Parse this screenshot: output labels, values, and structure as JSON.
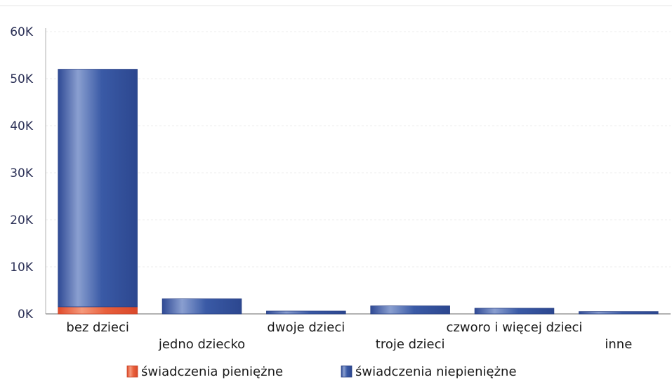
{
  "chart_data": {
    "type": "bar",
    "stacked": true,
    "categories": [
      "bez dzieci",
      "jedno dziecko",
      "dwoje dzieci",
      "troje dzieci",
      "czworo i więcej dzieci",
      "inne"
    ],
    "series": [
      {
        "name": "świadczenia pieniężne",
        "color": "#e8603c",
        "values": [
          1500,
          0,
          0,
          0,
          0,
          0
        ]
      },
      {
        "name": "świadczenia niepieniężne",
        "color": "#3f5fa8",
        "values": [
          50500,
          3200,
          600,
          1700,
          1200,
          500
        ]
      }
    ],
    "ylim": [
      0,
      60000
    ],
    "yticks": [
      0,
      10000,
      20000,
      30000,
      40000,
      50000,
      60000
    ],
    "ytick_labels": [
      "0K",
      "10K",
      "20K",
      "30K",
      "40K",
      "50K",
      "60K"
    ],
    "grid": true,
    "legend": "bottom"
  }
}
